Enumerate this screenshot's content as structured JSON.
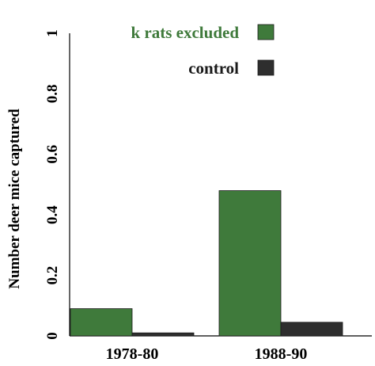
{
  "chart_data": {
    "type": "bar",
    "categories": [
      "1978-80",
      "1988-90"
    ],
    "series": [
      {
        "name": "k rats excluded",
        "values": [
          0.09,
          0.48
        ],
        "color": "#3f7a3b"
      },
      {
        "name": "control",
        "values": [
          0.01,
          0.045
        ],
        "color": "#2e2e2e"
      }
    ],
    "ylabel": "Number deer mice captured",
    "xlabel": "",
    "ylim": [
      0,
      1
    ],
    "yticks": [
      {
        "value": 0,
        "label": "0"
      },
      {
        "value": 0.2,
        "label": "0.2"
      },
      {
        "value": 0.4,
        "label": "0.4"
      },
      {
        "value": 0.6,
        "label": "0.6"
      },
      {
        "value": 0.8,
        "label": "0.8"
      },
      {
        "value": 1,
        "label": "1"
      }
    ],
    "legend": {
      "placement": "top-right",
      "label_colors": [
        "#3f7a3b",
        "#1a1a1a"
      ]
    },
    "grid": false
  }
}
